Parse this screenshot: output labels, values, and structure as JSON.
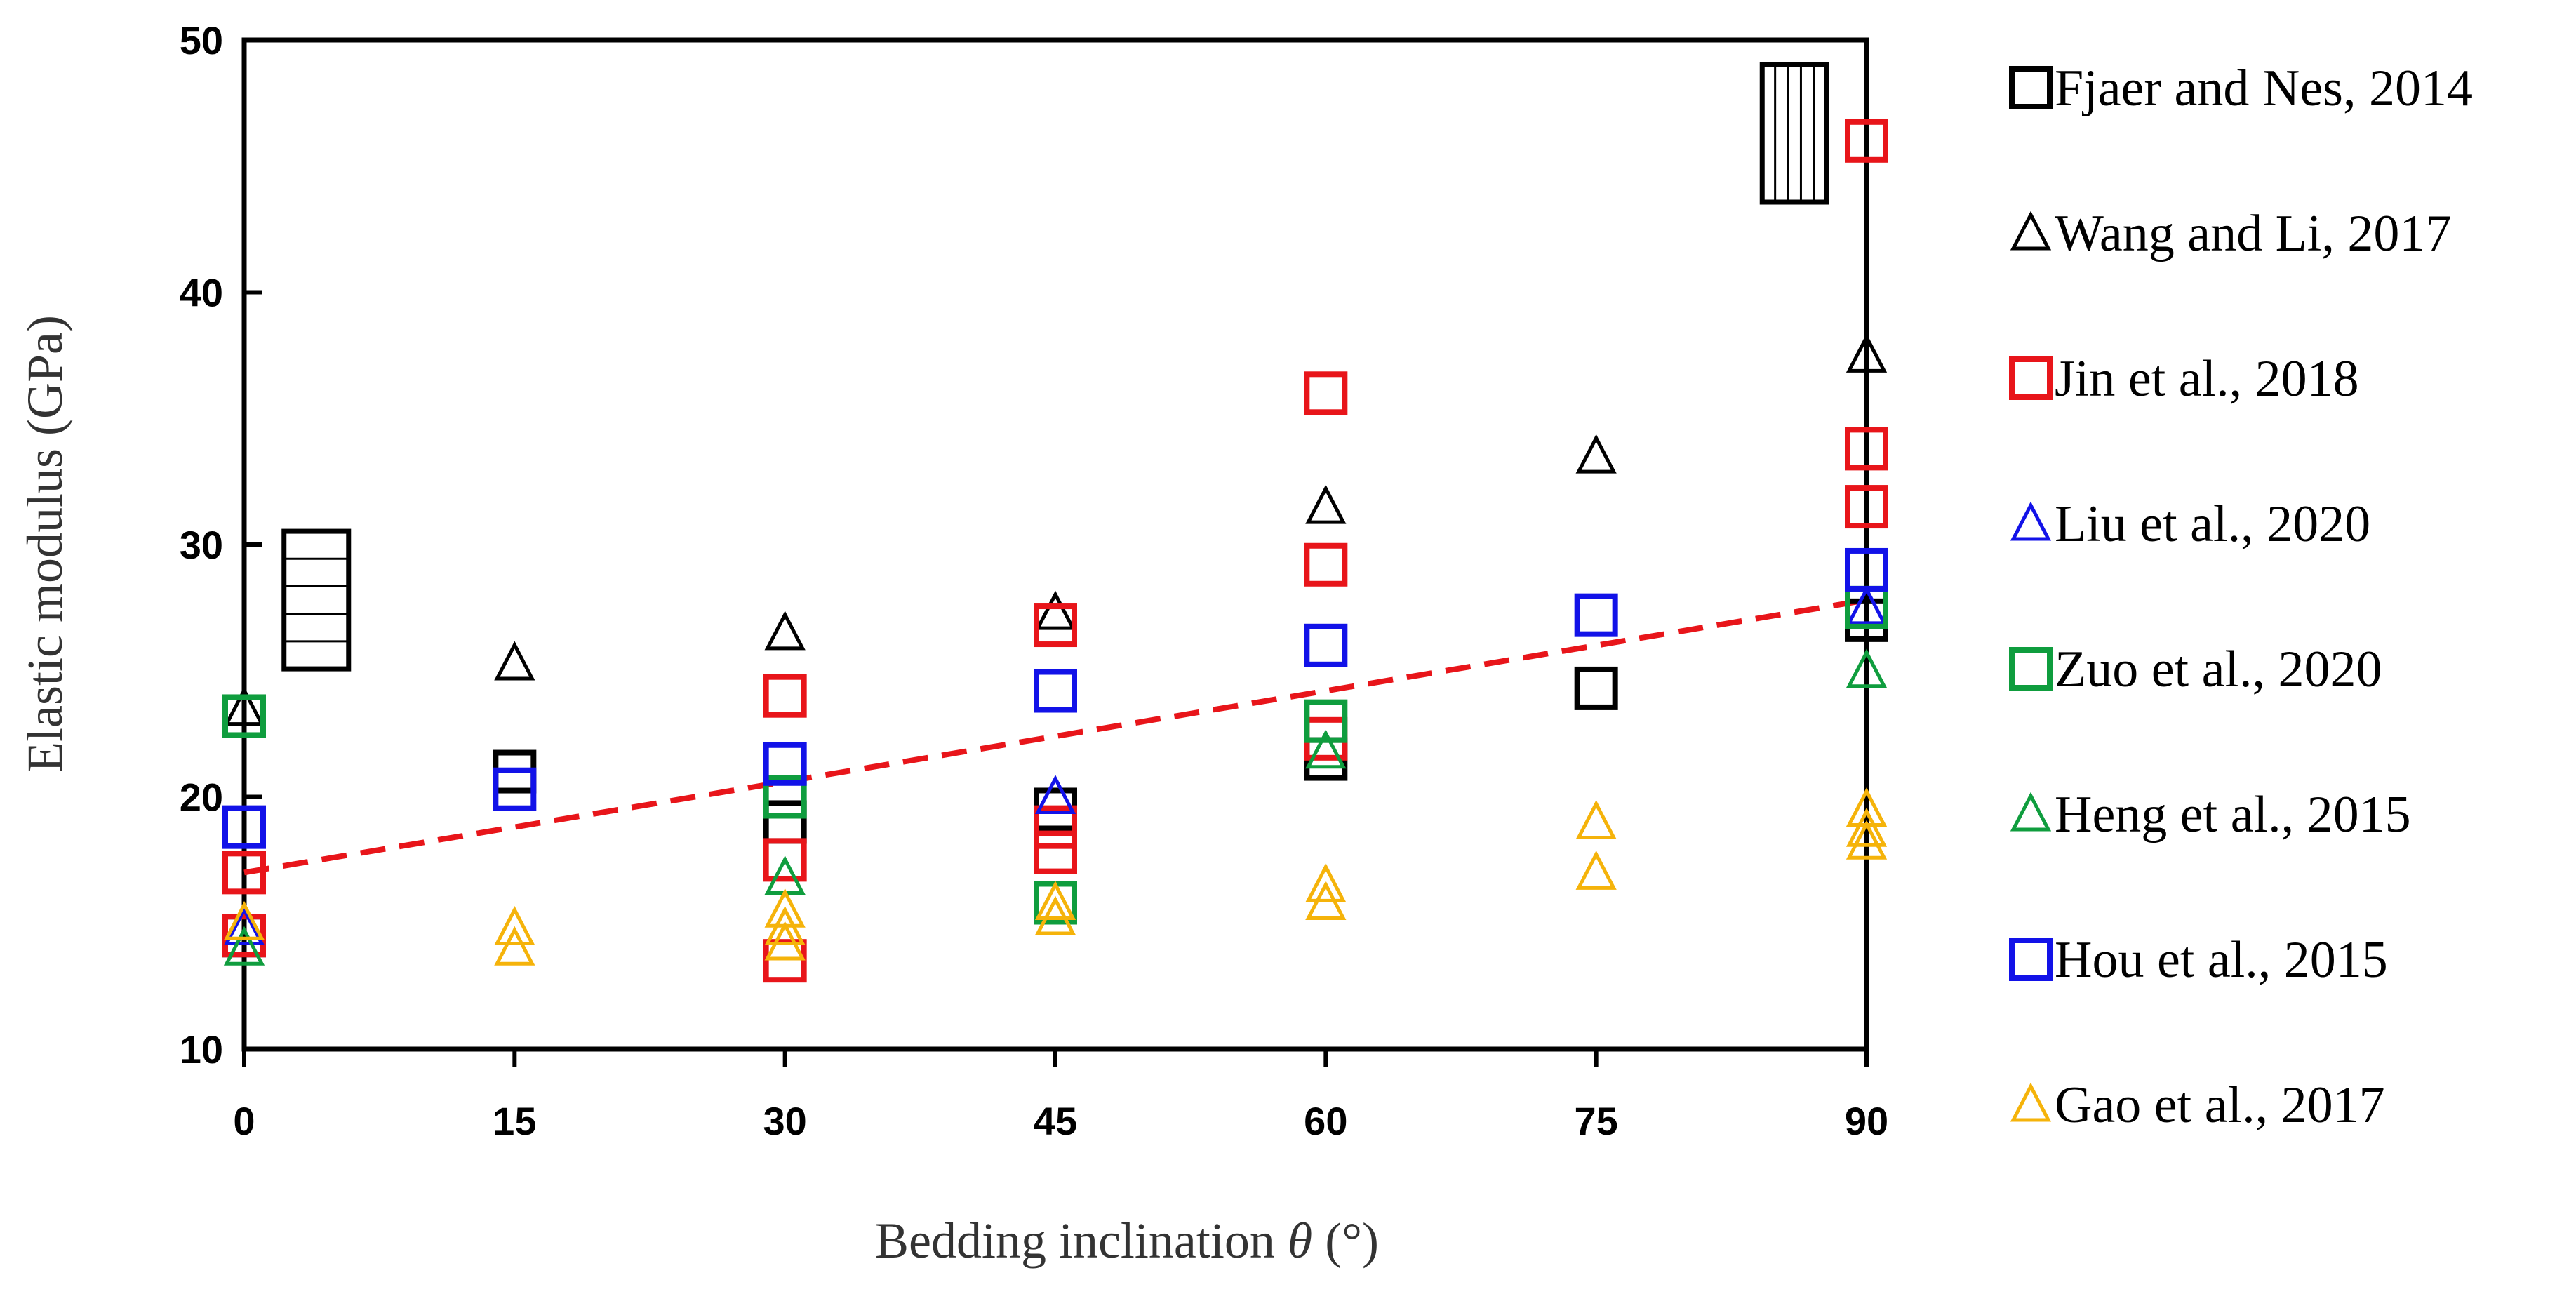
{
  "chart_data": {
    "type": "scatter",
    "title": "",
    "xlabel_prefix": "Bedding inclination ",
    "xlabel_symbol": "θ",
    "xlabel_suffix": " (°)",
    "ylabel": "Elastic modulus (GPa)",
    "xlim": [
      0,
      90
    ],
    "ylim": [
      10,
      50
    ],
    "xticks": [
      "0",
      "15",
      "30",
      "45",
      "60",
      "75",
      "90"
    ],
    "xtick_values": [
      0,
      15,
      30,
      45,
      60,
      75,
      90
    ],
    "yticks": [
      "10",
      "20",
      "30",
      "40",
      "50"
    ],
    "ytick_values": [
      10,
      20,
      30,
      40,
      50
    ],
    "grid": false,
    "legend_position": "right",
    "series": [
      {
        "name": "Fjaer and Nes, 2014",
        "marker": "square",
        "color": "#000000",
        "x": [
          0,
          15,
          30,
          45,
          60,
          75,
          90
        ],
        "y": [
          14.5,
          21.0,
          19.0,
          19.5,
          21.5,
          24.3,
          27.0
        ]
      },
      {
        "name": "Wang and Li, 2017",
        "marker": "triangle",
        "color": "#000000",
        "x": [
          0,
          15,
          30,
          45,
          60,
          75,
          90
        ],
        "y": [
          23.5,
          25.3,
          26.5,
          27.3,
          31.5,
          33.5,
          37.5
        ]
      },
      {
        "name": "Jin et al., 2018",
        "marker": "square",
        "color": "#e8151a",
        "x": [
          0,
          0,
          30,
          30,
          30,
          45,
          45,
          45,
          60,
          60,
          60,
          90,
          90,
          90
        ],
        "y": [
          17.0,
          14.5,
          24.0,
          17.5,
          13.5,
          26.8,
          18.8,
          17.8,
          36.0,
          29.2,
          22.3,
          46.0,
          33.8,
          31.5
        ]
      },
      {
        "name": "Liu et al., 2020",
        "marker": "triangle",
        "color": "#1212e8",
        "x": [
          0,
          45,
          90
        ],
        "y": [
          14.8,
          20.0,
          27.5
        ]
      },
      {
        "name": "Zuo et al., 2020",
        "marker": "square",
        "color": "#0f9d3e",
        "x": [
          0,
          30,
          45,
          60,
          90
        ],
        "y": [
          23.2,
          20.0,
          15.8,
          23.0,
          27.5
        ]
      },
      {
        "name": "Heng et al., 2015",
        "marker": "triangle",
        "color": "#0f9d3e",
        "x": [
          0,
          30,
          60,
          90
        ],
        "y": [
          14.0,
          16.8,
          21.8,
          25.0
        ]
      },
      {
        "name": "Hou et al., 2015",
        "marker": "square",
        "color": "#1212e8",
        "x": [
          0,
          15,
          30,
          45,
          60,
          75,
          90
        ],
        "y": [
          18.8,
          20.3,
          21.3,
          24.2,
          26.0,
          27.2,
          29.0
        ]
      },
      {
        "name": "Gao et al., 2017",
        "marker": "triangle",
        "color": "#f5b30a",
        "x": [
          0,
          15,
          15,
          30,
          30,
          30,
          45,
          45,
          60,
          60,
          75,
          75,
          90,
          90,
          90
        ],
        "y": [
          15.0,
          14.8,
          14.0,
          15.5,
          14.8,
          14.2,
          15.8,
          15.2,
          16.5,
          15.8,
          19.0,
          17.0,
          19.5,
          18.7,
          18.2
        ]
      }
    ],
    "trendline": {
      "color": "#e8151a",
      "style": "dashed",
      "x": [
        0,
        90
      ],
      "y": [
        17.0,
        27.8
      ]
    },
    "annotations": [
      {
        "name": "horizontal-bedding-icon",
        "x": 4,
        "y": 27.8,
        "pattern": "horizontal"
      },
      {
        "name": "vertical-bedding-icon",
        "x": 86,
        "y": 46.3,
        "pattern": "vertical"
      }
    ]
  }
}
